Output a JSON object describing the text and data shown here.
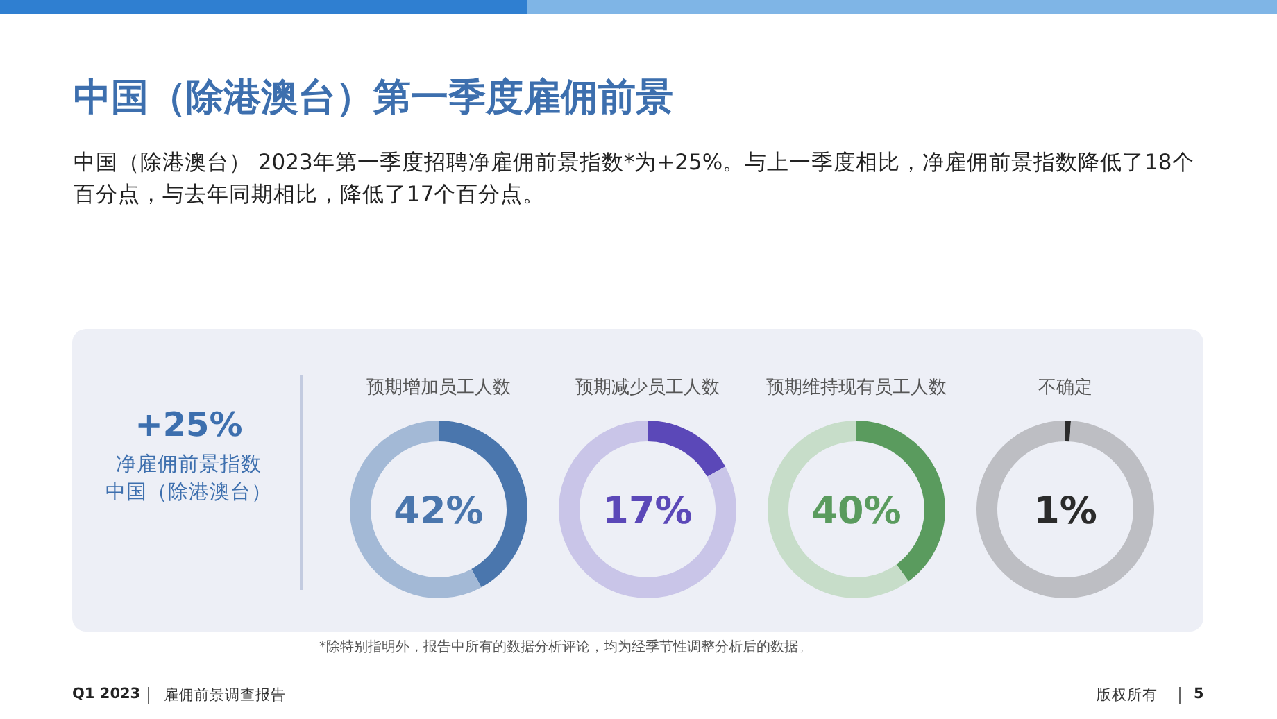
{
  "chart_data": [
    {
      "type": "other",
      "title": "中国（除港澳台）第一季度雇佣前景",
      "subtitle": "中国（除港澳台） 2023年第一季度招聘净雇佣前景指数*为+25%。与上一季度相比，净雇佣前景指数降低了18个百分点，与去年同期相比，降低了17个百分点。",
      "annotations": [
        "+25%",
        "净雇佣前景指数",
        "中国（除港澳台）",
        "*除特别指明外，报告中所有的数据分析评论，均为经季节性调整分析后的数据。",
        "Q1 2023",
        "雇佣前景调查报告",
        "版权所有",
        "5"
      ]
    },
    {
      "type": "donut",
      "title": "预期增加员工人数",
      "categories": [
        null,
        null
      ],
      "values": [
        42,
        58
      ],
      "colors": [
        "#4a76ad",
        "#a3b9d6"
      ],
      "annotations": [
        "42%"
      ]
    },
    {
      "type": "donut",
      "title": "预期减少员工人数",
      "categories": [
        null,
        null
      ],
      "values": [
        17,
        83
      ],
      "colors": [
        "#5b48b8",
        "#c9c5e8"
      ],
      "annotations": [
        "17%"
      ]
    },
    {
      "type": "donut",
      "title": "预期维持现有员工人数",
      "categories": [
        null,
        null
      ],
      "values": [
        40,
        60
      ],
      "colors": [
        "#5a9b5e",
        "#c7ddc9"
      ],
      "annotations": [
        "40%"
      ]
    },
    {
      "type": "donut",
      "title": "不确定",
      "categories": [
        null,
        null
      ],
      "values": [
        1,
        99
      ],
      "colors": [
        "#2b2b2b",
        "#bdbec3"
      ],
      "annotations": [
        "1%"
      ]
    }
  ]
}
